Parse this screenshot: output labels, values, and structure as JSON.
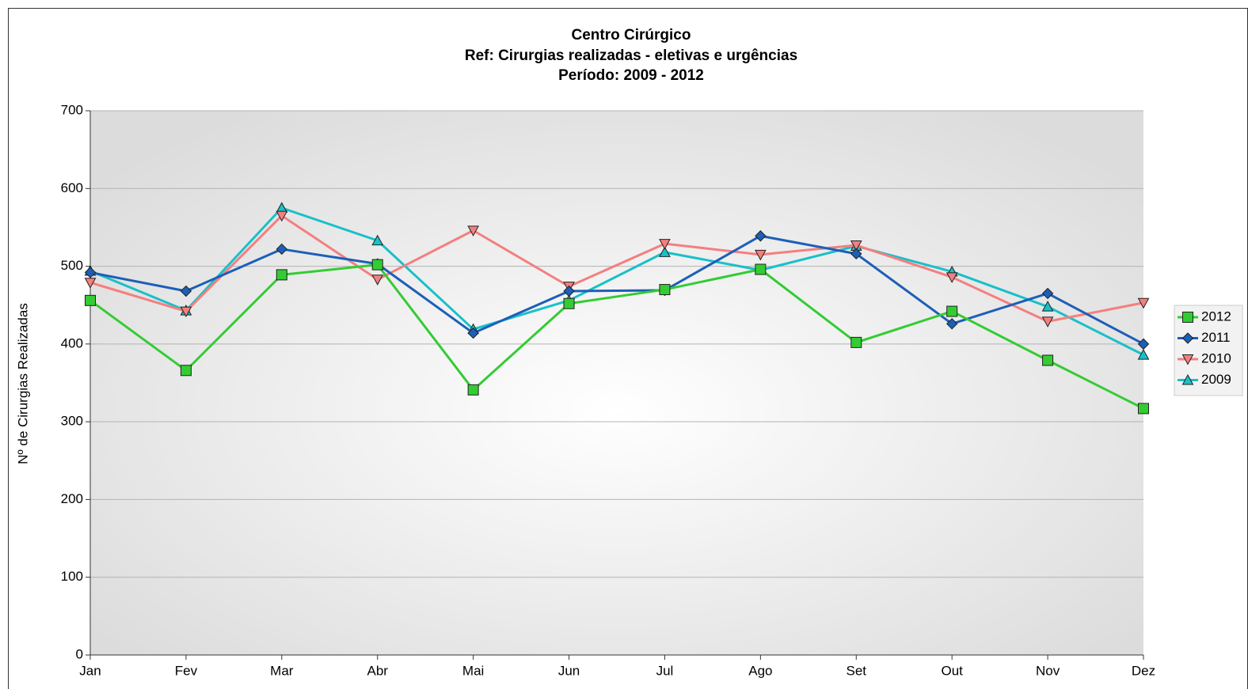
{
  "chart_data": {
    "type": "line",
    "title": "Centro Cirúrgico",
    "subtitle": [
      "Ref: Cirurgias realizadas - eletivas e urgências",
      "Período: 2009 - 2012"
    ],
    "y_label": "Nº de Cirurgias Realizadas",
    "categories": [
      "Jan",
      "Fev",
      "Mar",
      "Abr",
      "Mai",
      "Jun",
      "Jul",
      "Ago",
      "Set",
      "Out",
      "Nov",
      "Dez"
    ],
    "series": [
      {
        "name": "2012",
        "color": "#33cc33",
        "marker": "square",
        "values": [
          456,
          366,
          489,
          502,
          341,
          452,
          470,
          496,
          402,
          442,
          379,
          317
        ]
      },
      {
        "name": "2011",
        "color": "#1c5fb8",
        "marker": "diamond",
        "values": [
          492,
          468,
          522,
          503,
          414,
          468,
          469,
          539,
          516,
          426,
          465,
          400
        ]
      },
      {
        "name": "2010",
        "color": "#f47f7f",
        "marker": "triangle-down",
        "values": [
          479,
          442,
          565,
          483,
          546,
          474,
          529,
          515,
          527,
          486,
          429,
          453
        ]
      },
      {
        "name": "2009",
        "color": "#19c0c8",
        "marker": "triangle-up",
        "values": [
          494,
          443,
          575,
          533,
          419,
          456,
          518,
          495,
          526,
          493,
          448,
          386
        ]
      }
    ],
    "ylim": [
      0,
      700
    ],
    "yticks": [
      0,
      100,
      200,
      300,
      400,
      500,
      600,
      700
    ],
    "grid": true,
    "legend": "right"
  }
}
